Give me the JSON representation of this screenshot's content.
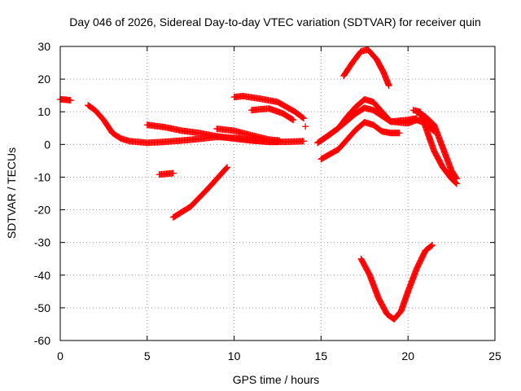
{
  "chart_data": {
    "type": "scatter",
    "title": "Day 046 of 2026, Sidereal Day-to-day VTEC variation (SDTVAR) for receiver quin",
    "xlabel": "GPS time / hours",
    "ylabel": "SDTVAR / TECUs",
    "xlim": [
      0,
      25
    ],
    "ylim": [
      -60,
      30
    ],
    "xticks": [
      0,
      5,
      10,
      15,
      20,
      25
    ],
    "yticks": [
      -60,
      -50,
      -40,
      -30,
      -20,
      -10,
      0,
      10,
      20,
      30
    ],
    "grid": true,
    "marker": "+",
    "color": "#ff0000",
    "series": [
      {
        "name": "arc-1",
        "points": [
          [
            0.0,
            13.8
          ],
          [
            0.3,
            13.7
          ],
          [
            0.6,
            13.5
          ]
        ]
      },
      {
        "name": "arc-2",
        "points": [
          [
            1.6,
            12.0
          ],
          [
            2.0,
            10.5
          ],
          [
            2.5,
            7.5
          ],
          [
            3.0,
            3.5
          ],
          [
            3.5,
            1.8
          ],
          [
            4.0,
            1.0
          ],
          [
            5.0,
            0.5
          ],
          [
            6.0,
            0.8
          ],
          [
            7.0,
            1.2
          ],
          [
            8.0,
            1.7
          ],
          [
            9.0,
            2.3
          ],
          [
            10.0,
            2.0
          ],
          [
            11.0,
            1.3
          ],
          [
            12.0,
            0.8
          ],
          [
            12.5,
            0.8
          ]
        ]
      },
      {
        "name": "arc-3",
        "points": [
          [
            5.0,
            6.0
          ],
          [
            6.0,
            5.3
          ],
          [
            7.0,
            4.2
          ],
          [
            8.0,
            3.5
          ],
          [
            9.0,
            2.5
          ],
          [
            10.0,
            1.8
          ],
          [
            11.0,
            1.2
          ],
          [
            12.0,
            0.8
          ],
          [
            13.0,
            0.8
          ],
          [
            14.0,
            1.0
          ]
        ]
      },
      {
        "name": "arc-4",
        "points": [
          [
            9.0,
            4.8
          ],
          [
            10.0,
            4.2
          ],
          [
            11.0,
            2.8
          ],
          [
            12.0,
            1.5
          ],
          [
            12.6,
            1.2
          ]
        ]
      },
      {
        "name": "arc-5",
        "points": [
          [
            5.7,
            -9.2
          ],
          [
            6.5,
            -8.8
          ]
        ]
      },
      {
        "name": "arc-6",
        "points": [
          [
            6.5,
            -22.3
          ],
          [
            7.5,
            -19.0
          ],
          [
            8.5,
            -13.5
          ],
          [
            9.6,
            -7.0
          ]
        ]
      },
      {
        "name": "arc-7",
        "points": [
          [
            10.0,
            14.5
          ],
          [
            10.5,
            14.8
          ],
          [
            11.5,
            14.0
          ],
          [
            12.5,
            13.0
          ],
          [
            13.5,
            10.0
          ],
          [
            14.0,
            8.0
          ]
        ]
      },
      {
        "name": "arc-8",
        "points": [
          [
            11.0,
            10.5
          ],
          [
            12.0,
            11.0
          ],
          [
            12.8,
            9.5
          ],
          [
            13.4,
            7.5
          ]
        ]
      },
      {
        "name": "arc-9",
        "points": [
          [
            14.1,
            5.5
          ]
        ]
      },
      {
        "name": "arc-10",
        "points": [
          [
            14.8,
            0.5
          ],
          [
            15.5,
            3.0
          ],
          [
            16.0,
            5.0
          ],
          [
            16.5,
            8.5
          ],
          [
            17.0,
            11.5
          ],
          [
            17.5,
            13.8
          ],
          [
            18.0,
            13.0
          ],
          [
            18.5,
            10.0
          ],
          [
            19.0,
            7.0
          ],
          [
            20.0,
            7.5
          ],
          [
            20.5,
            8.0
          ]
        ]
      },
      {
        "name": "arc-11",
        "points": [
          [
            15.0,
            1.2
          ],
          [
            16.0,
            5.0
          ],
          [
            17.0,
            9.5
          ],
          [
            17.5,
            11.2
          ],
          [
            18.0,
            10.5
          ],
          [
            19.0,
            7.0
          ],
          [
            20.0,
            6.5
          ],
          [
            20.5,
            7.5
          ],
          [
            21.0,
            6.5
          ],
          [
            21.5,
            4.0
          ]
        ]
      },
      {
        "name": "arc-12",
        "points": [
          [
            15.0,
            -4.5
          ],
          [
            16.0,
            -1.5
          ],
          [
            17.0,
            4.5
          ],
          [
            17.5,
            6.8
          ],
          [
            18.0,
            6.0
          ],
          [
            18.5,
            4.0
          ],
          [
            19.0,
            3.5
          ],
          [
            19.5,
            3.5
          ]
        ]
      },
      {
        "name": "arc-13",
        "points": [
          [
            16.3,
            21.0
          ],
          [
            16.8,
            25.0
          ],
          [
            17.3,
            28.5
          ],
          [
            17.7,
            29.0
          ],
          [
            18.2,
            26.0
          ],
          [
            18.6,
            22.0
          ],
          [
            18.9,
            18.0
          ]
        ]
      },
      {
        "name": "arc-14",
        "points": [
          [
            20.3,
            10.5
          ],
          [
            20.7,
            10.0
          ],
          [
            21.0,
            5.5
          ],
          [
            21.5,
            -2.0
          ],
          [
            22.0,
            -7.0
          ],
          [
            22.5,
            -10.5
          ],
          [
            22.8,
            -12.0
          ]
        ]
      },
      {
        "name": "arc-15",
        "points": [
          [
            20.5,
            10.0
          ],
          [
            21.0,
            8.5
          ],
          [
            21.5,
            6.0
          ],
          [
            22.0,
            -1.0
          ],
          [
            22.5,
            -8.0
          ],
          [
            22.8,
            -10.5
          ]
        ]
      },
      {
        "name": "arc-16",
        "points": [
          [
            17.3,
            -35.0
          ],
          [
            17.8,
            -40.0
          ],
          [
            18.3,
            -47.0
          ],
          [
            18.8,
            -52.0
          ],
          [
            19.2,
            -53.5
          ],
          [
            19.6,
            -51.0
          ],
          [
            20.0,
            -45.0
          ],
          [
            20.5,
            -38.0
          ],
          [
            21.0,
            -32.5
          ],
          [
            21.4,
            -30.8
          ]
        ]
      }
    ]
  }
}
